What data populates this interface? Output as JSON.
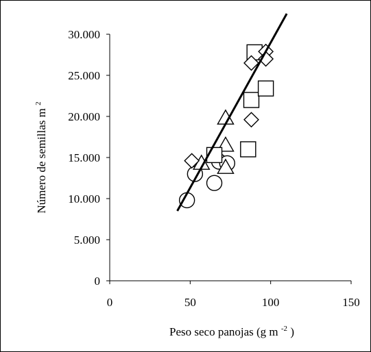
{
  "chart_data": {
    "type": "scatter",
    "title": "",
    "xlabel": "Peso seco panojas (g m",
    "xlabel_sup": "-2",
    "xlabel_suffix": ")",
    "ylabel": "Número de semillas m",
    "ylabel_sup": "2",
    "xlim": [
      0,
      150
    ],
    "ylim": [
      0,
      30000
    ],
    "x_ticks": [
      0,
      50,
      100,
      150
    ],
    "x_tick_labels": [
      "0",
      "50",
      "100",
      "150"
    ],
    "y_ticks": [
      0,
      5000,
      10000,
      15000,
      20000,
      25000,
      30000
    ],
    "y_tick_labels": [
      "0",
      "5.000",
      "10.000",
      "15.000",
      "20.000",
      "25.000",
      "30.000"
    ],
    "grid": false,
    "legend": "none",
    "series": [
      {
        "marker": "circle",
        "points": [
          [
            48,
            9800
          ],
          [
            53,
            13000
          ],
          [
            65,
            11900
          ],
          [
            68,
            14500
          ],
          [
            73,
            14300
          ]
        ]
      },
      {
        "marker": "triangle",
        "points": [
          [
            57,
            14300
          ],
          [
            72,
            19800
          ],
          [
            72,
            16500
          ],
          [
            72,
            13800
          ]
        ]
      },
      {
        "marker": "square",
        "points": [
          [
            65,
            15300
          ],
          [
            86,
            16000
          ],
          [
            88,
            22000
          ],
          [
            90,
            27800
          ],
          [
            97,
            23400
          ]
        ]
      },
      {
        "marker": "diamond",
        "points": [
          [
            51,
            14600
          ],
          [
            88,
            19600
          ],
          [
            88,
            26500
          ],
          [
            97,
            27900
          ],
          [
            97,
            27000
          ]
        ]
      }
    ],
    "trendline": {
      "x": [
        42,
        110
      ],
      "y": [
        8500,
        32500
      ]
    }
  }
}
